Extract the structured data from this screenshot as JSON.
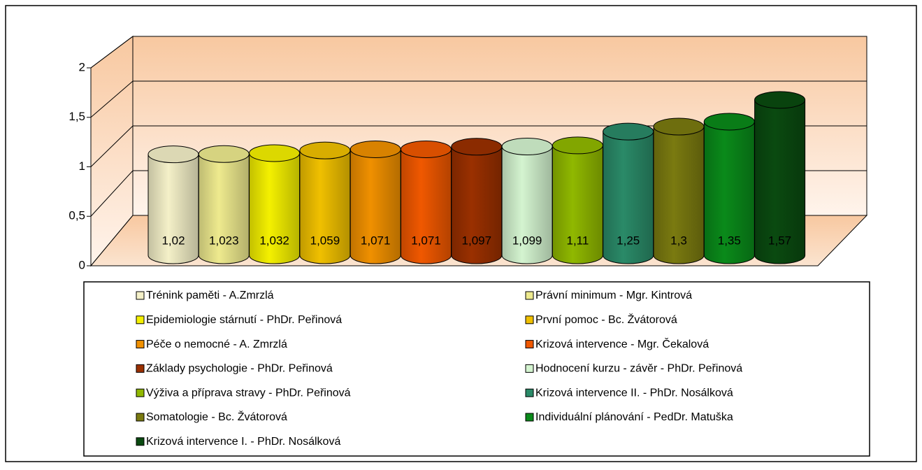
{
  "chart_data": {
    "type": "cylinder-bar",
    "ylim": [
      0,
      2
    ],
    "yticks": [
      0,
      {
        "value": 0.5,
        "label": "0,5"
      },
      1,
      {
        "value": 1.5,
        "label": "1,5"
      },
      2
    ],
    "grid": true,
    "series": [
      {
        "name": "Trénink paměti - A.Zmrzlá",
        "color": "#f4f0c8",
        "values": [
          1.02
        ],
        "value_labels": [
          "1,02"
        ]
      },
      {
        "name": "Právní minimum - Mgr. Kintrová",
        "color": "#eeea8e",
        "values": [
          1.023
        ],
        "value_labels": [
          "1,023"
        ]
      },
      {
        "name": "Epidemiologie stárnutí - PhDr. Peřinová",
        "color": "#f4f000",
        "values": [
          1.032
        ],
        "value_labels": [
          "1,032"
        ]
      },
      {
        "name": "První pomoc - Bc. Žvátorová",
        "color": "#f0c000",
        "values": [
          1.059
        ],
        "value_labels": [
          "1,059"
        ]
      },
      {
        "name": "Péče o nemocné - A. Zmrzlá",
        "color": "#f09000",
        "values": [
          1.071
        ],
        "value_labels": [
          "1,071"
        ]
      },
      {
        "name": "Krizová intervence - Mgr. Čekalová",
        "color": "#f05800",
        "values": [
          1.071
        ],
        "value_labels": [
          "1,071"
        ]
      },
      {
        "name": "Základy psychologie - PhDr. Peřinová",
        "color": "#9a3000",
        "values": [
          1.097
        ],
        "value_labels": [
          "1,097"
        ]
      },
      {
        "name": "Hodnocení kurzu - závěr - PhDr. Peřinová",
        "color": "#d4f4d0",
        "values": [
          1.099
        ],
        "value_labels": [
          "1,099"
        ]
      },
      {
        "name": "Výživa a příprava stravy - PhDr. Peřinová",
        "color": "#90b800",
        "values": [
          1.11
        ],
        "value_labels": [
          "1,11"
        ]
      },
      {
        "name": "Krizová intervence II. - PhDr. Nosálková",
        "color": "#2a8a68",
        "values": [
          1.25
        ],
        "value_labels": [
          "1,25"
        ]
      },
      {
        "name": "Somatologie - Bc. Žvátorová",
        "color": "#7a7a10",
        "values": [
          1.3
        ],
        "value_labels": [
          "1,3"
        ]
      },
      {
        "name": "Individuální plánování - PedDr. Matuška",
        "color": "#0a8a1a",
        "values": [
          1.35
        ],
        "value_labels": [
          "1,35"
        ]
      },
      {
        "name": "Krizová intervence I. - PhDr. Nosálková",
        "color": "#0a4a10",
        "values": [
          1.57
        ],
        "value_labels": [
          "1,57"
        ]
      }
    ]
  }
}
